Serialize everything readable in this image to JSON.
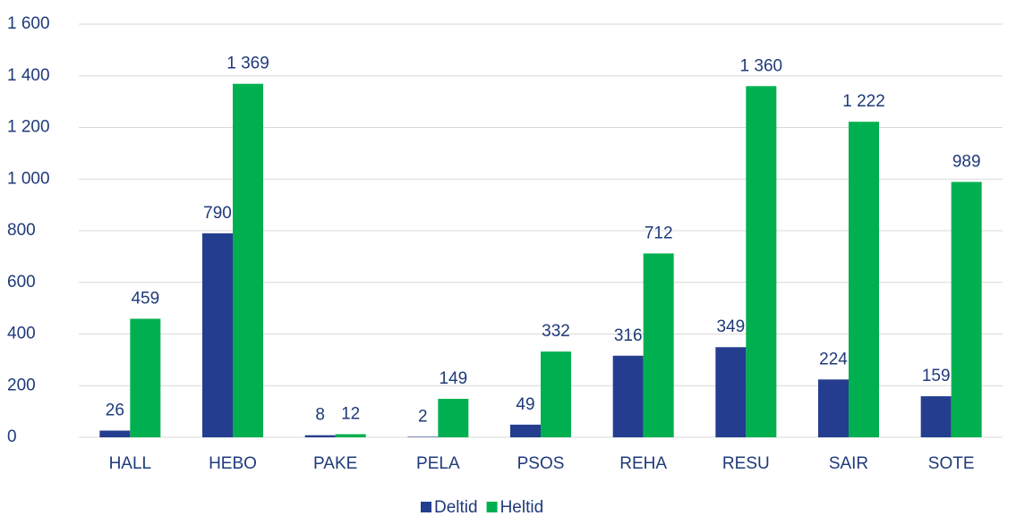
{
  "chart_data": {
    "type": "bar",
    "categories": [
      "HALL",
      "HEBO",
      "PAKE",
      "PELA",
      "PSOS",
      "REHA",
      "RESU",
      "SAIR",
      "SOTE"
    ],
    "series": [
      {
        "name": "Deltid",
        "color": "#243d8f",
        "values": [
          26,
          790,
          8,
          2,
          49,
          316,
          349,
          224,
          159
        ]
      },
      {
        "name": "Heltid",
        "color": "#00b050",
        "values": [
          459,
          1369,
          12,
          149,
          332,
          712,
          1360,
          1222,
          989
        ],
        "value_labels": [
          "459",
          "1 369",
          "12",
          "149",
          "332",
          "712",
          "1 360",
          "1 222",
          "989"
        ]
      }
    ],
    "ylim": [
      0,
      1600
    ],
    "yticks": [
      0,
      200,
      400,
      600,
      800,
      {
        "value": 1000,
        "label": "1 000"
      },
      {
        "value": 1200,
        "label": "1 200"
      },
      {
        "value": 1400,
        "label": "1 400"
      },
      {
        "value": 1600,
        "label": "1 600"
      }
    ],
    "grid": true,
    "legend": "bottom"
  }
}
